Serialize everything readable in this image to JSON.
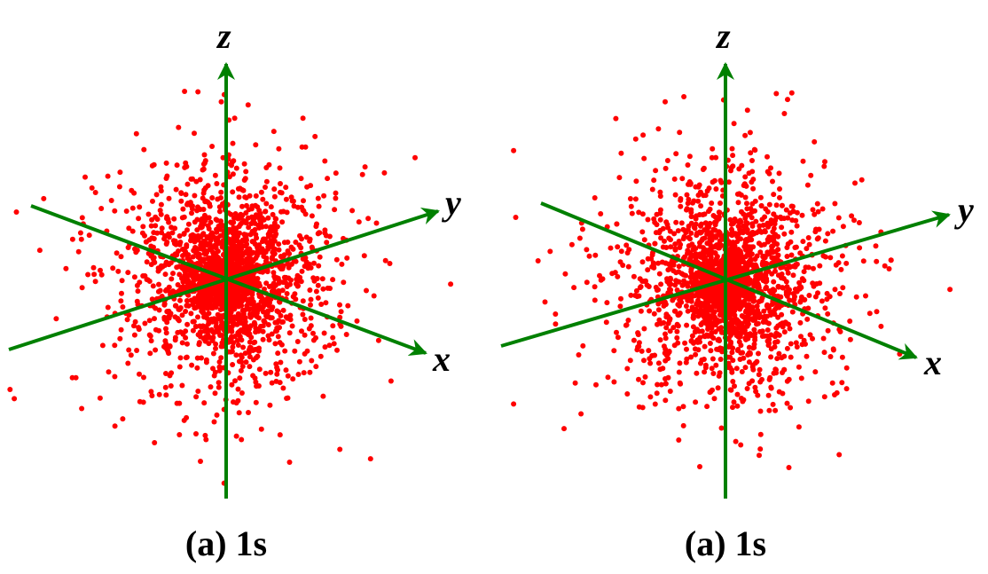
{
  "colors": {
    "points": "#ff0000",
    "axes": "#008000",
    "text": "#000000"
  },
  "chart_data": [
    {
      "type": "scatter",
      "projection": "3d",
      "axes": [
        "x",
        "y",
        "z"
      ],
      "caption": "(a) 1s",
      "distribution": "dense cluster centred on origin"
    },
    {
      "type": "scatter",
      "projection": "3d",
      "axes": [
        "x",
        "y",
        "z"
      ],
      "caption": "(a) 1s",
      "distribution": "dense cluster centred on origin"
    }
  ]
}
